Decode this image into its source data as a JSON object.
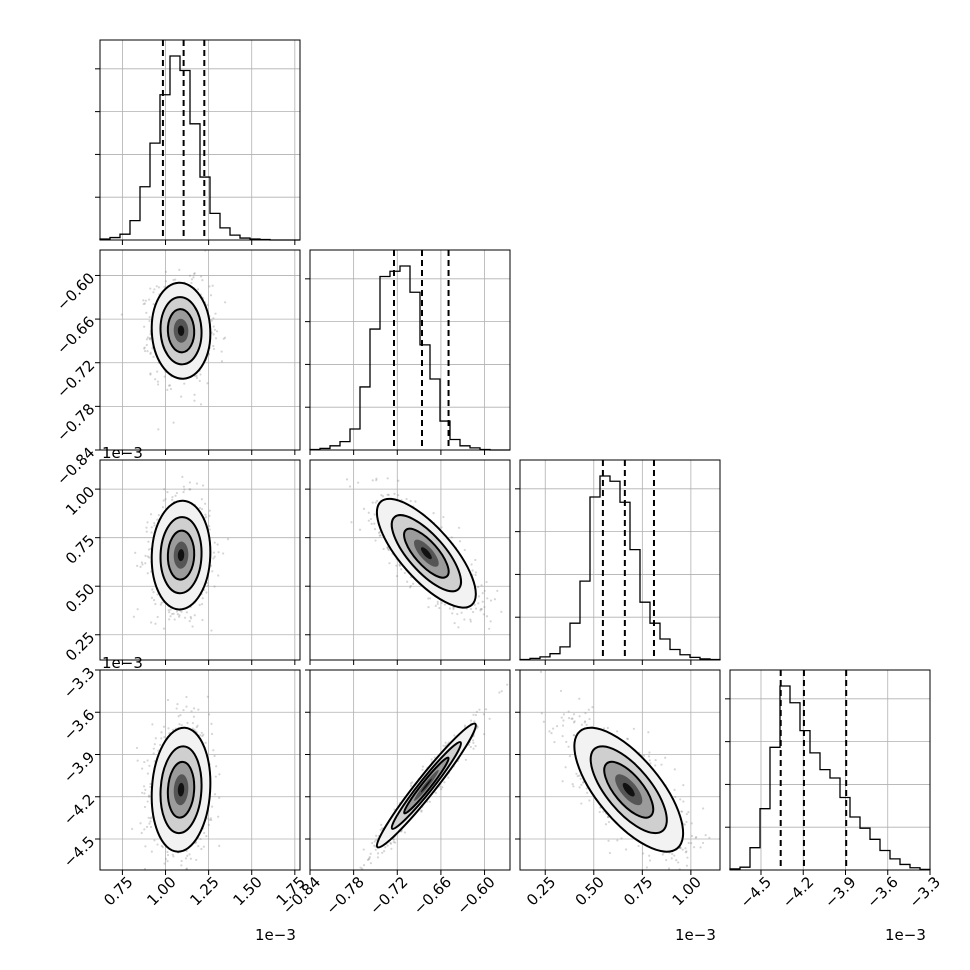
{
  "chart_data": {
    "type": "corner",
    "variables": [
      {
        "range": [
          0.62,
          1.78
        ],
        "ticks": [
          0.75,
          1.0,
          1.25,
          1.5,
          1.75
        ],
        "tick_labels": [
          "0.75",
          "1.00",
          "1.25",
          "1.50",
          "1.75"
        ],
        "offset_text": "1e−3",
        "quantiles": [
          0.985,
          1.105,
          1.225
        ],
        "hist_counts": [
          2,
          5,
          12,
          40,
          110,
          200,
          300,
          380,
          350,
          240,
          130,
          55,
          25,
          10,
          4,
          2,
          1,
          0,
          0,
          0
        ]
      },
      {
        "range": [
          -0.84,
          -0.565
        ],
        "ticks": [
          -0.84,
          -0.78,
          -0.72,
          -0.66,
          -0.6
        ],
        "tick_labels": [
          "−0.84",
          "−0.78",
          "−0.72",
          "−0.66",
          "−0.60"
        ],
        "offset_text": "",
        "quantiles": [
          -0.7245,
          -0.686,
          -0.6495
        ],
        "hist_counts": [
          1,
          3,
          8,
          16,
          40,
          120,
          230,
          330,
          340,
          350,
          300,
          200,
          135,
          55,
          20,
          8,
          4,
          1,
          0,
          0
        ]
      },
      {
        "range": [
          0.12,
          1.15
        ],
        "ticks": [
          0.25,
          0.5,
          0.75,
          1.0
        ],
        "tick_labels": [
          "0.25",
          "0.50",
          "0.75",
          "1.00"
        ],
        "offset_text": "1e−3",
        "quantiles": [
          0.547,
          0.66,
          0.81
        ],
        "hist_counts": [
          1,
          3,
          6,
          12,
          25,
          70,
          150,
          310,
          350,
          340,
          300,
          210,
          110,
          70,
          40,
          20,
          10,
          5,
          2,
          1
        ]
      },
      {
        "range": [
          -4.72,
          -3.3
        ],
        "ticks": [
          -4.5,
          -4.2,
          -3.9,
          -3.6,
          -3.3
        ],
        "tick_labels": [
          "−4.5",
          "−4.2",
          "−3.9",
          "−3.6",
          "−3.3"
        ],
        "offset_text": "1e−3",
        "quantiles": [
          -4.36,
          -4.195,
          -3.895
        ],
        "hist_counts": [
          2,
          5,
          40,
          110,
          220,
          330,
          300,
          250,
          210,
          180,
          165,
          130,
          95,
          75,
          55,
          35,
          20,
          10,
          4,
          1
        ]
      }
    ],
    "pairs": [
      {
        "x": 0,
        "y": 1,
        "center": [
          1.09,
          -0.676
        ],
        "sigma": [
          0.085,
          0.033
        ],
        "corr": -0.05
      },
      {
        "x": 0,
        "y": 2,
        "center": [
          1.09,
          0.66
        ],
        "sigma": [
          0.085,
          0.14
        ],
        "corr": 0.05
      },
      {
        "x": 1,
        "y": 2,
        "center": [
          -0.68,
          0.67
        ],
        "sigma": [
          0.034,
          0.14
        ],
        "corr": -0.75
      },
      {
        "x": 0,
        "y": 3,
        "center": [
          1.09,
          -4.15
        ],
        "sigma": [
          0.085,
          0.22
        ],
        "corr": 0.1
      },
      {
        "x": 1,
        "y": 3,
        "center": [
          -0.68,
          -4.12
        ],
        "sigma": [
          0.034,
          0.22
        ],
        "corr": 0.97
      },
      {
        "x": 2,
        "y": 3,
        "center": [
          0.68,
          -4.15
        ],
        "sigma": [
          0.14,
          0.22
        ],
        "corr": -0.7
      }
    ]
  }
}
